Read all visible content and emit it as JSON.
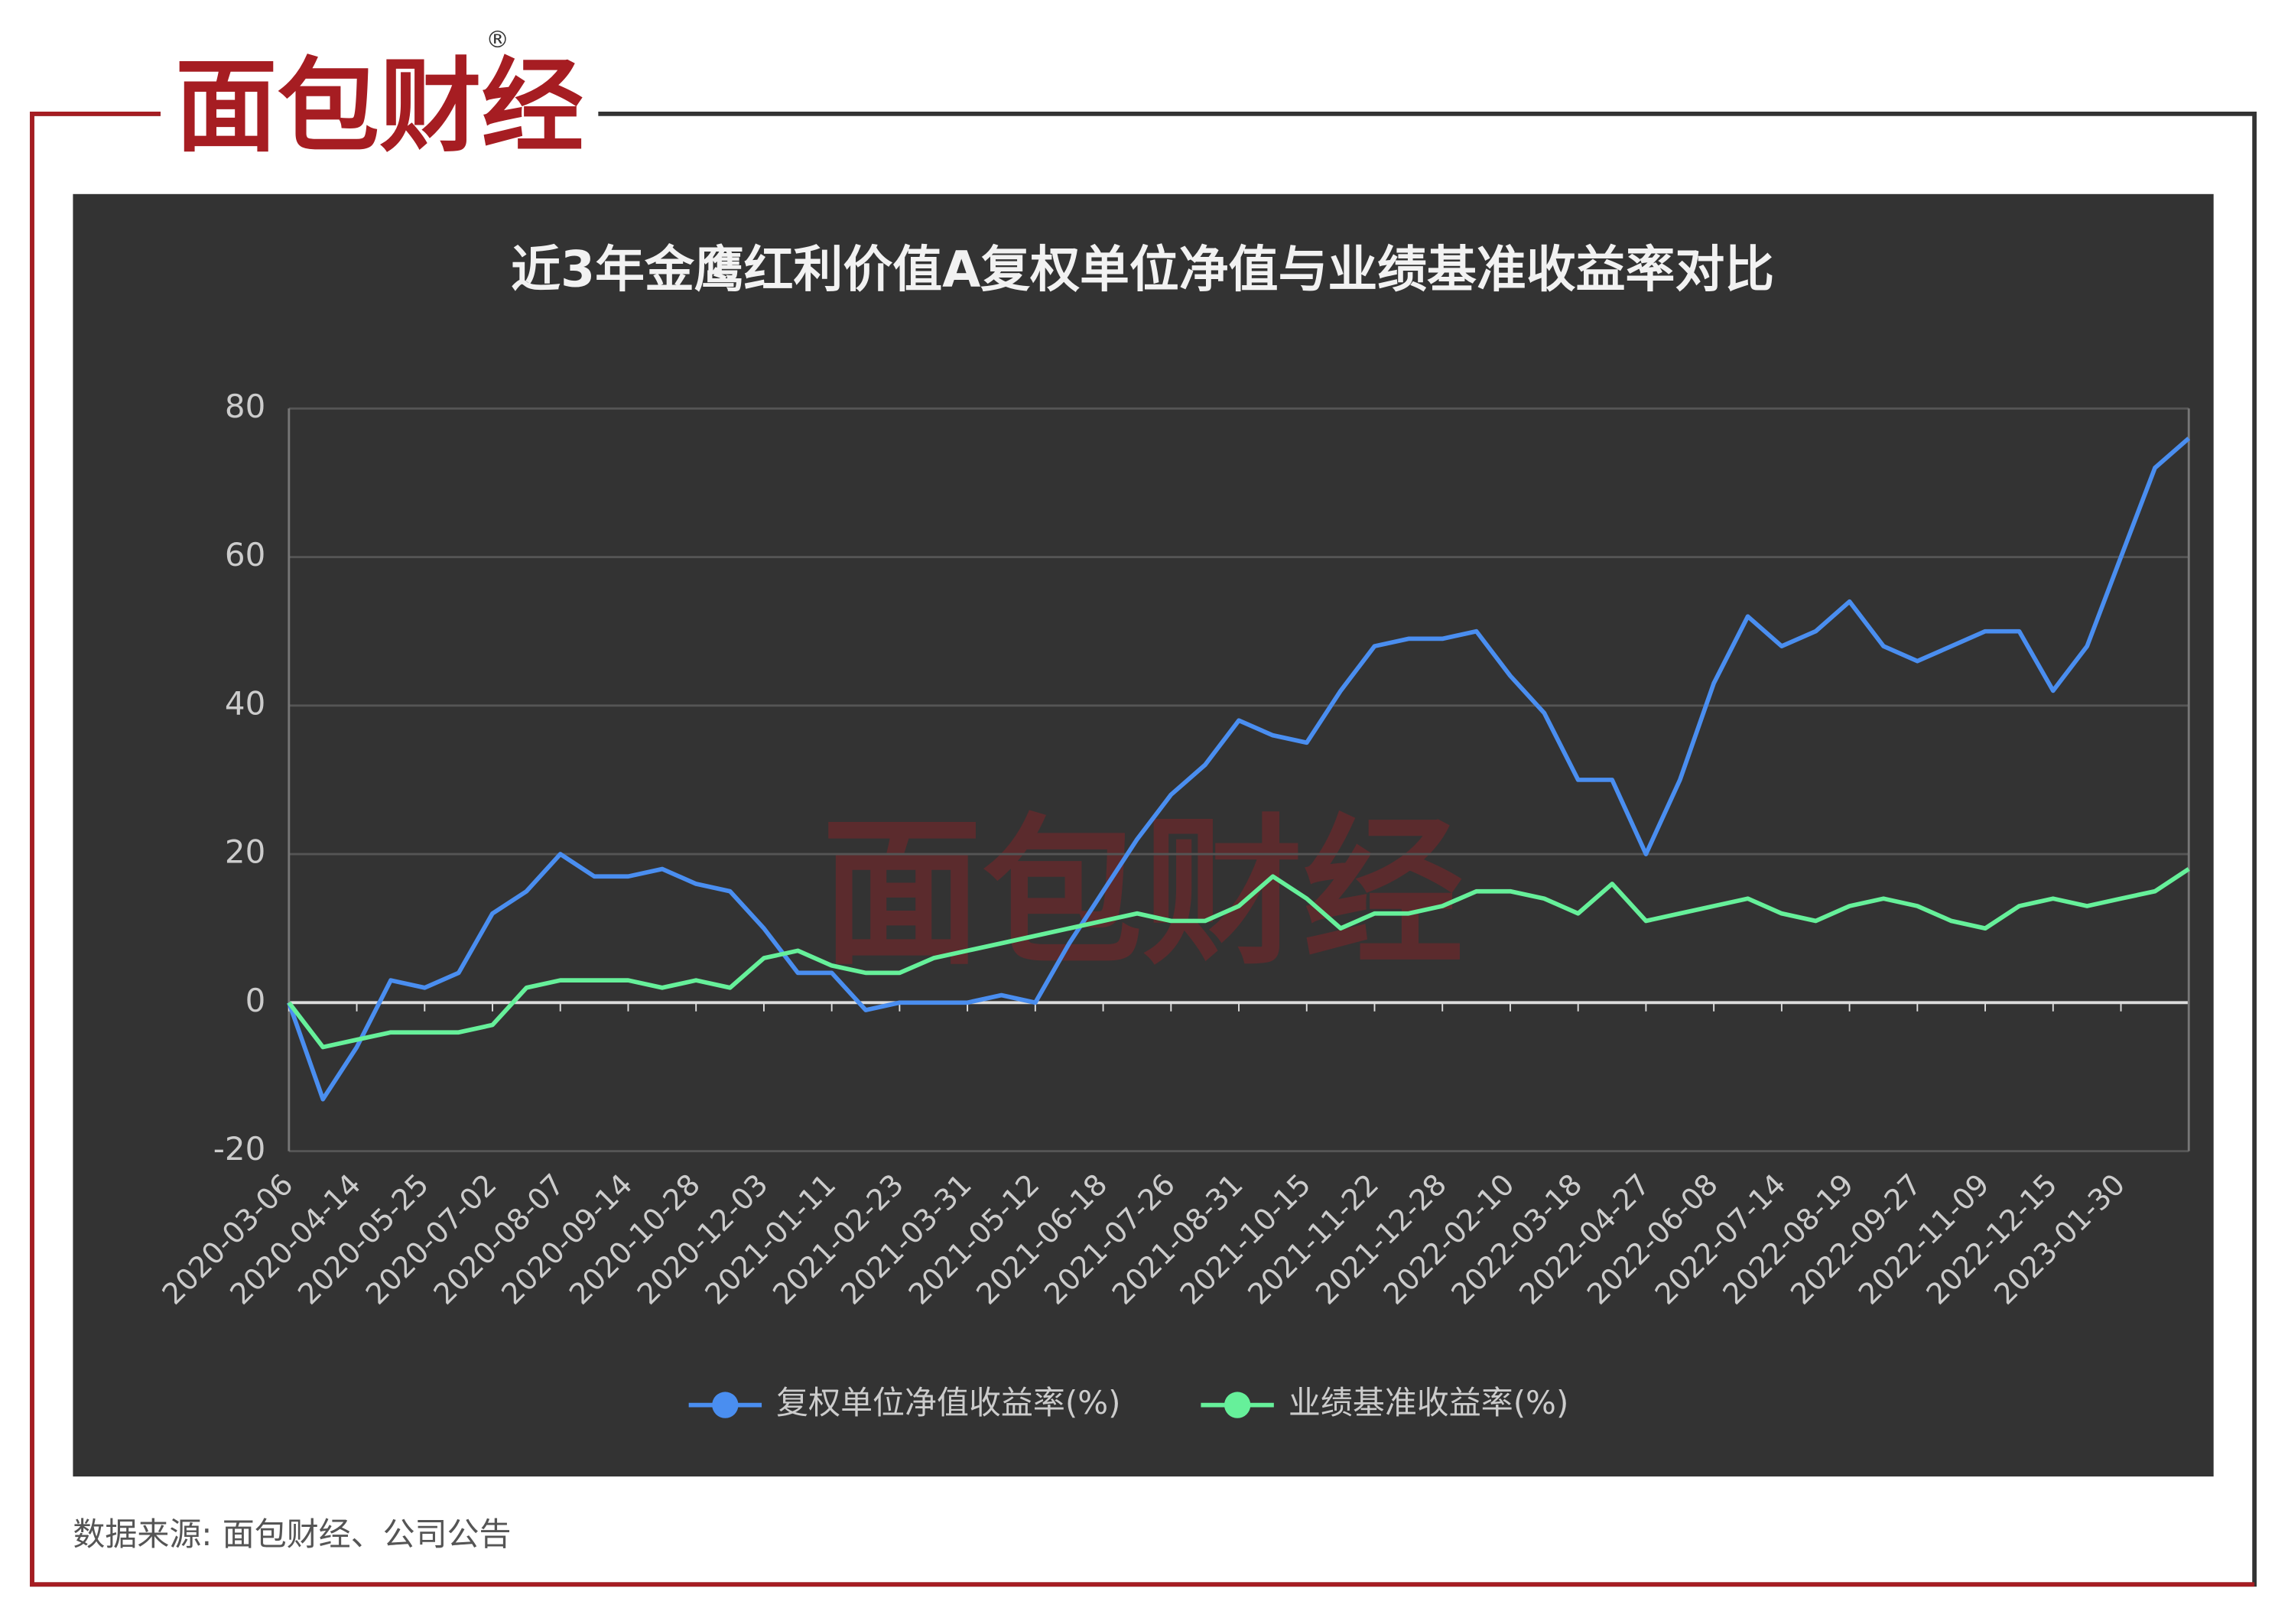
{
  "logo": "面包财经",
  "logo_mark": "®",
  "source": "数据来源: 面包财经、公司公告",
  "chart_data": {
    "type": "line",
    "title": "近3年金鹰红利价值A复权单位净值与业绩基准收益率对比",
    "watermark": "面包财经",
    "categories": [
      "2020-03-06",
      null,
      "2020-04-14",
      null,
      "2020-05-25",
      null,
      "2020-07-02",
      null,
      "2020-08-07",
      null,
      "2020-09-14",
      null,
      "2020-10-28",
      null,
      "2020-12-03",
      null,
      "2021-01-11",
      null,
      "2021-02-23",
      null,
      "2021-03-31",
      null,
      "2021-05-12",
      null,
      "2021-06-18",
      null,
      "2021-07-26",
      null,
      "2021-08-31",
      null,
      "2021-10-15",
      null,
      "2021-11-22",
      null,
      "2021-12-28",
      null,
      "2022-02-10",
      null,
      "2022-03-18",
      null,
      "2022-04-27",
      null,
      "2022-06-08",
      null,
      "2022-07-14",
      null,
      "2022-08-19",
      null,
      "2022-09-27",
      null,
      "2022-11-09",
      null,
      "2022-12-15",
      null,
      "2023-01-30",
      null,
      null
    ],
    "series": [
      {
        "name": "复权单位净值收益率(%)",
        "color": "#4a8ef0",
        "values": [
          0,
          -13,
          -6,
          3,
          2,
          4,
          12,
          15,
          20,
          17,
          17,
          18,
          16,
          15,
          10,
          4,
          4,
          -1,
          0,
          0,
          0,
          1,
          0,
          8,
          15,
          22,
          28,
          32,
          38,
          36,
          35,
          42,
          48,
          49,
          49,
          50,
          44,
          39,
          30,
          30,
          20,
          30,
          43,
          52,
          48,
          50,
          54,
          48,
          46,
          48,
          50,
          50,
          42,
          48,
          60,
          72,
          76
        ]
      },
      {
        "name": "业绩基准收益率(%)",
        "color": "#66f09a",
        "values": [
          0,
          -6,
          -5,
          -4,
          -4,
          -4,
          -3,
          2,
          3,
          3,
          3,
          2,
          3,
          2,
          6,
          7,
          5,
          4,
          4,
          6,
          7,
          8,
          9,
          10,
          11,
          12,
          11,
          11,
          13,
          17,
          14,
          10,
          12,
          12,
          13,
          15,
          15,
          14,
          12,
          16,
          11,
          12,
          13,
          14,
          12,
          11,
          13,
          14,
          13,
          11,
          10,
          13,
          14,
          13,
          14,
          15,
          18
        ]
      }
    ],
    "ylim": [
      -20,
      80
    ],
    "yticks": [
      -20,
      0,
      20,
      40,
      60,
      80
    ],
    "grid": true,
    "legend": "bottom"
  }
}
